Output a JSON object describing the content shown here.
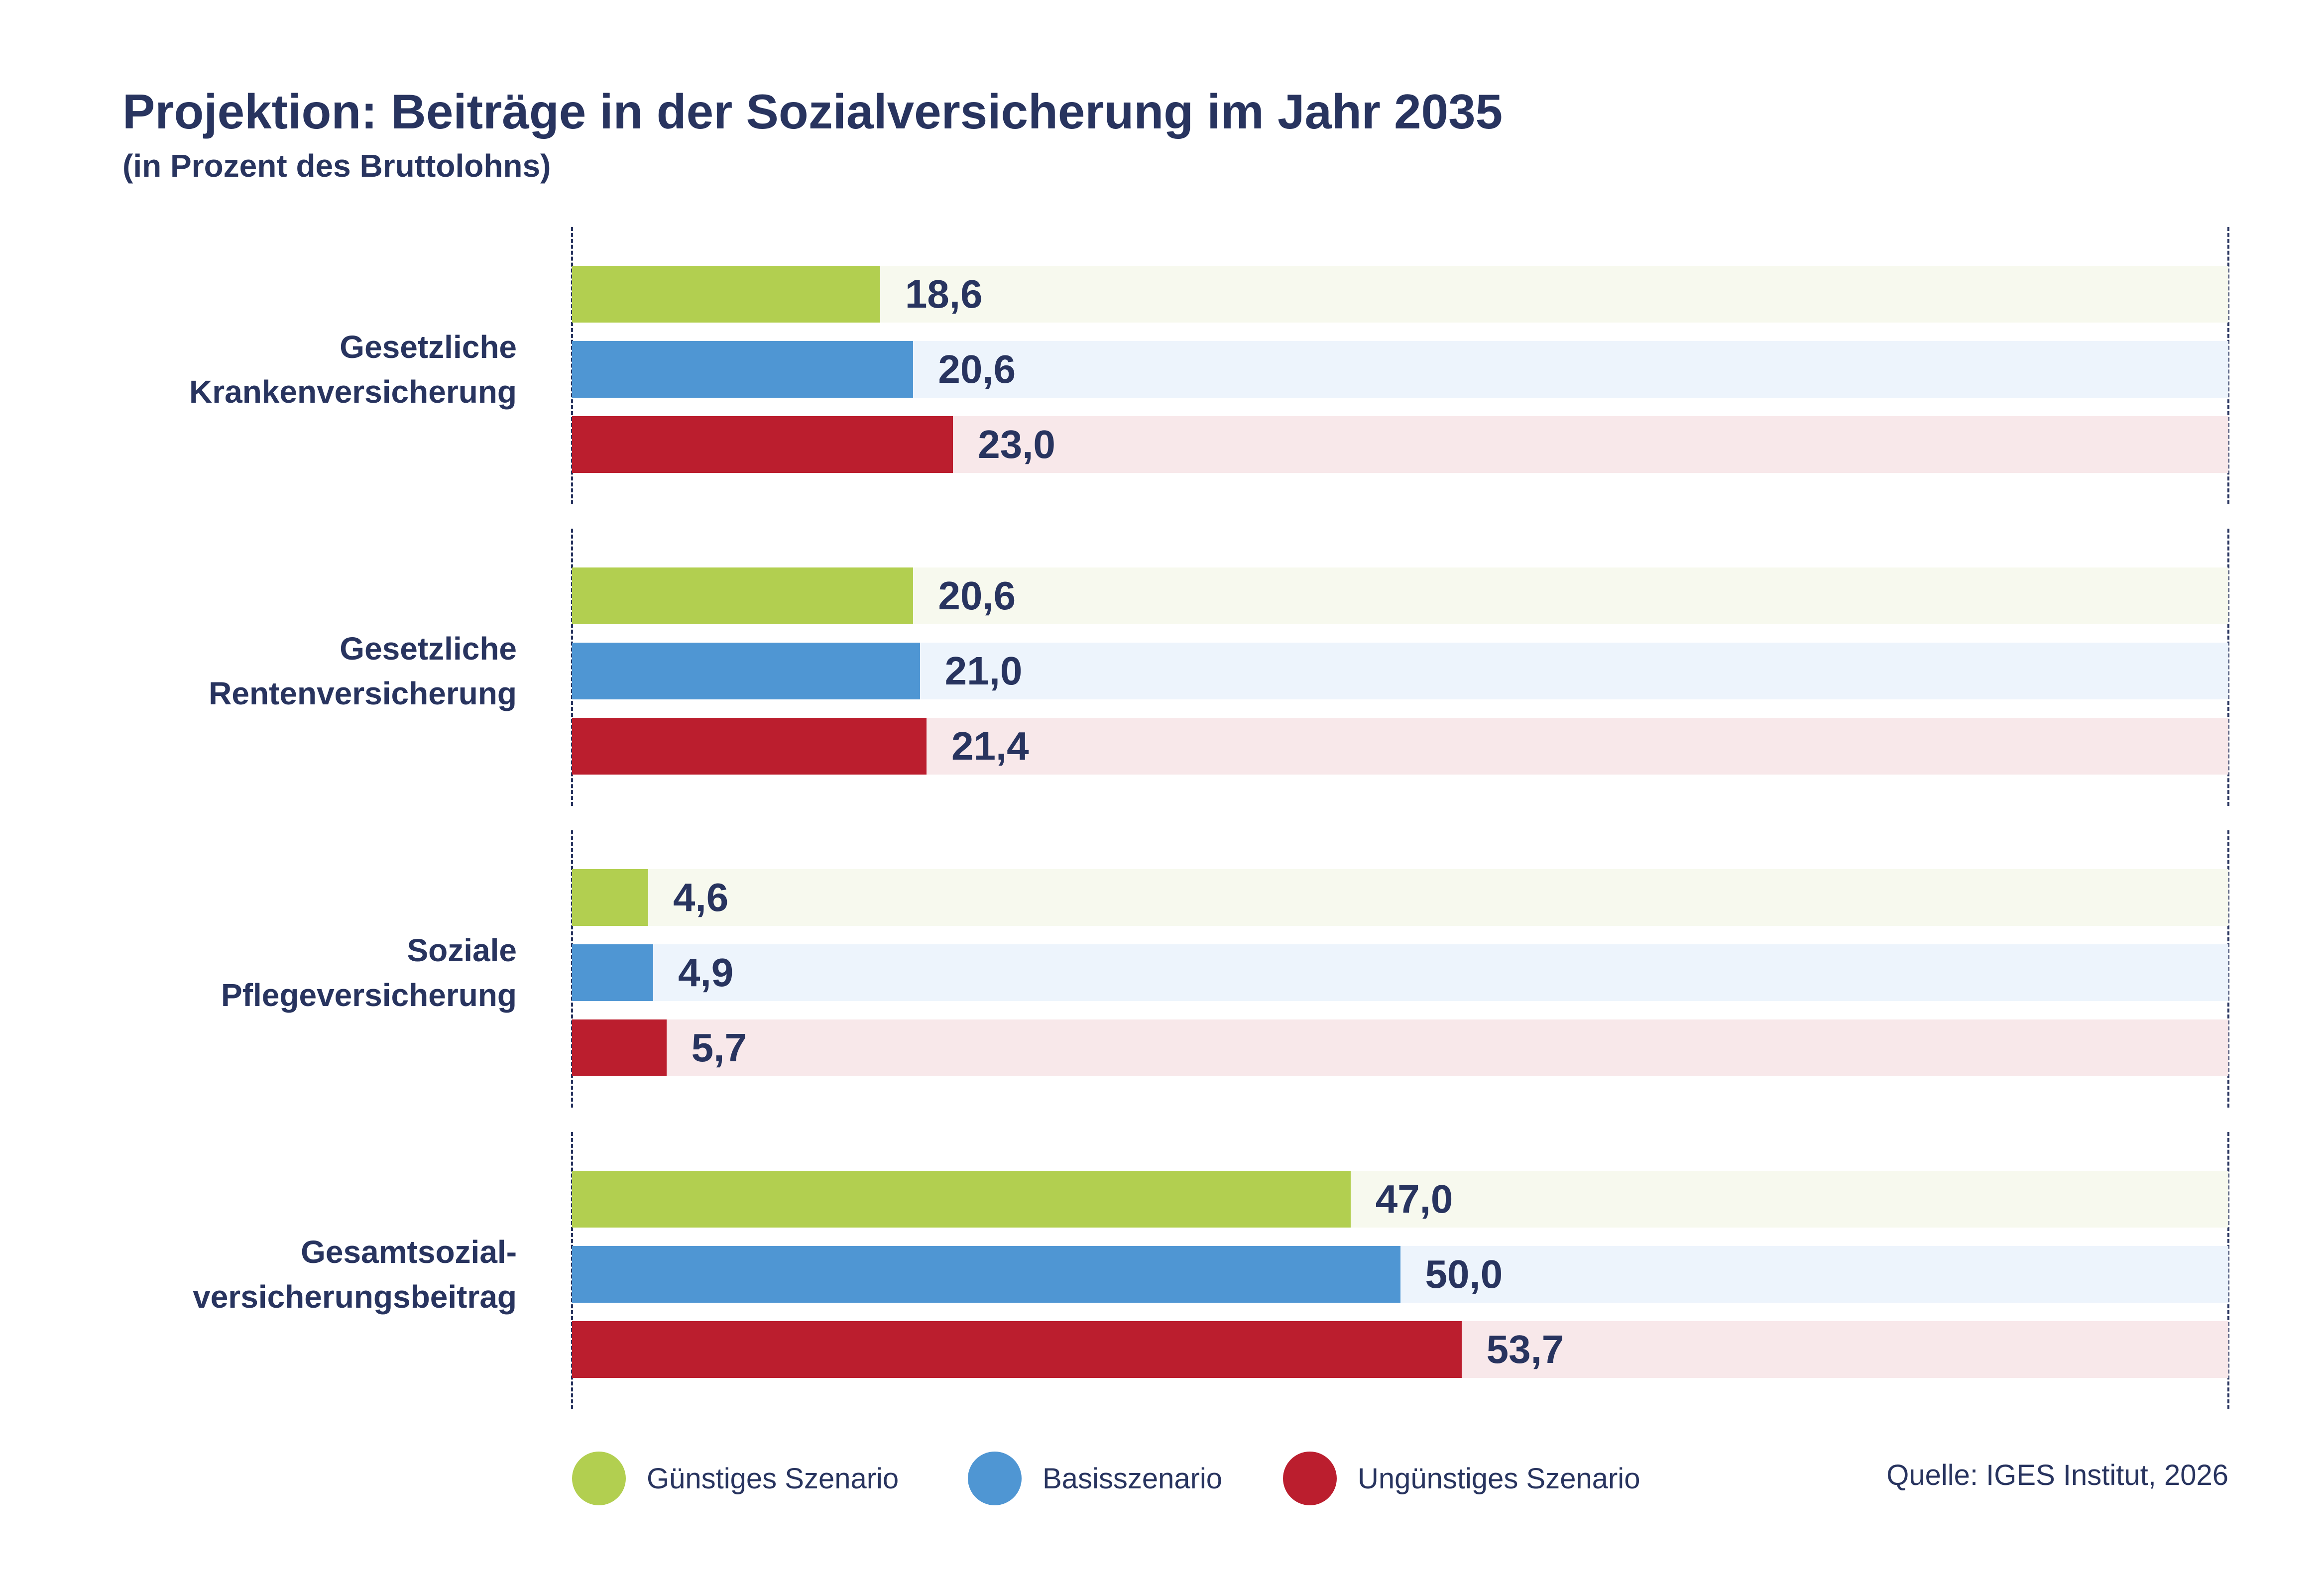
{
  "title": "Projektion: Beiträge in der Sozialversicherung im Jahr 2035",
  "subtitle": "(in Prozent des Bruttolohns)",
  "source": "Quelle: IGES Institut, 2026",
  "colors": {
    "text": "#28345f",
    "series": [
      "#b2cf50",
      "#4f96d3",
      "#bb1e2e"
    ],
    "tracks": [
      "#f7f9ee",
      "#edf4fc",
      "#f8e8ea"
    ]
  },
  "chart_data": {
    "type": "bar",
    "orientation": "horizontal",
    "title": "Projektion: Beiträge in der Sozialversicherung im Jahr 2035",
    "subtitle": "(in Prozent des Bruttolohns)",
    "categories": [
      [
        "Gesetzliche",
        "Krankenversicherung"
      ],
      [
        "Gesetzliche",
        "Rentenversicherung"
      ],
      [
        "Soziale",
        "Pflegeversicherung"
      ],
      [
        "Gesamtsozial-",
        "versicherungsbeitrag"
      ]
    ],
    "series": [
      {
        "name": "Günstiges Szenario",
        "values": [
          18.6,
          20.6,
          4.6,
          47.0
        ],
        "labels": [
          "18,6",
          "20,6",
          "4,6",
          "47,0"
        ]
      },
      {
        "name": "Basisszenario",
        "values": [
          20.6,
          21.0,
          4.9,
          50.0
        ],
        "labels": [
          "20,6",
          "21,0",
          "4,9",
          "50,0"
        ]
      },
      {
        "name": "Ungünstiges Szenario",
        "values": [
          23.0,
          21.4,
          5.7,
          53.7
        ],
        "labels": [
          "23,0",
          "21,4",
          "5,7",
          "53,7"
        ]
      }
    ],
    "xlim": [
      0,
      100
    ],
    "grid": false,
    "legend": "bottom-left"
  }
}
